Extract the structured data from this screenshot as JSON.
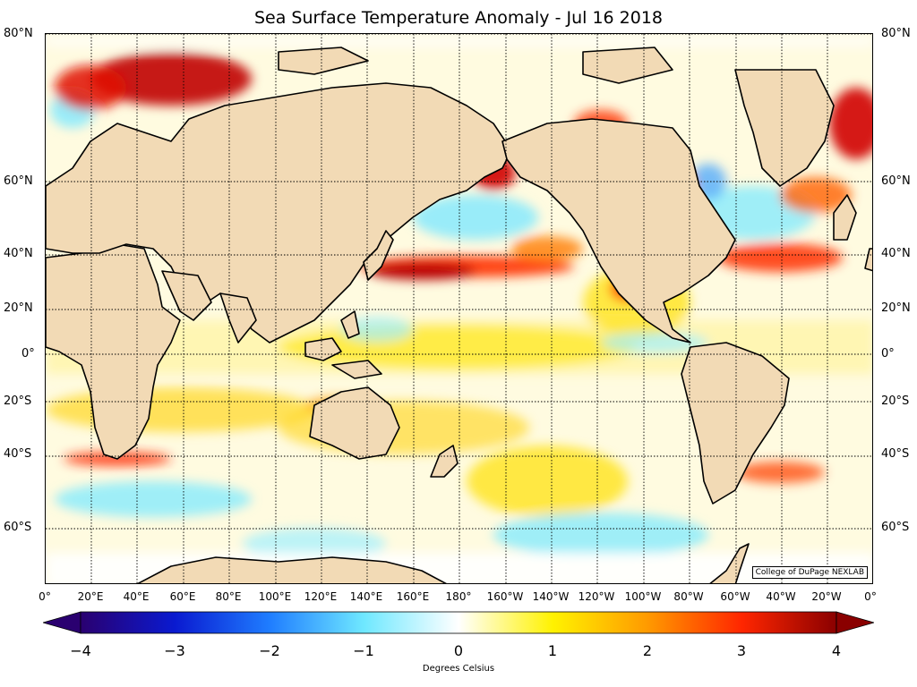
{
  "title": "Sea Surface Temperature Anomaly - Jul 16 2018",
  "credit": "College of DuPage NEXLAB",
  "lat_labels": [
    "80°N",
    "60°N",
    "40°N",
    "20°N",
    "0°",
    "20°S",
    "40°S",
    "60°S"
  ],
  "lon_labels": [
    "0°",
    "20°E",
    "40°E",
    "60°E",
    "80°E",
    "100°E",
    "120°E",
    "140°E",
    "160°E",
    "180°",
    "160°W",
    "140°W",
    "120°W",
    "100°W",
    "80°W",
    "60°W",
    "40°W",
    "20°W",
    "0°"
  ],
  "colorbar": {
    "label": "Degrees Celsius",
    "ticks": [
      "−4",
      "−3",
      "−2",
      "−1",
      "0",
      "1",
      "2",
      "3",
      "4"
    ],
    "colors": [
      "#2a0070",
      "#0a1ad0",
      "#1f7dff",
      "#6fe8ff",
      "#ffffff",
      "#fff200",
      "#ff9a00",
      "#ff2600",
      "#8a0000"
    ]
  },
  "colors": {
    "land": "#f2dab5",
    "coastline": "#000000",
    "warm_anomaly": "#ff8c00",
    "strong_warm_anomaly": "#b40000",
    "cool_anomaly": "#6fe8ff"
  }
}
